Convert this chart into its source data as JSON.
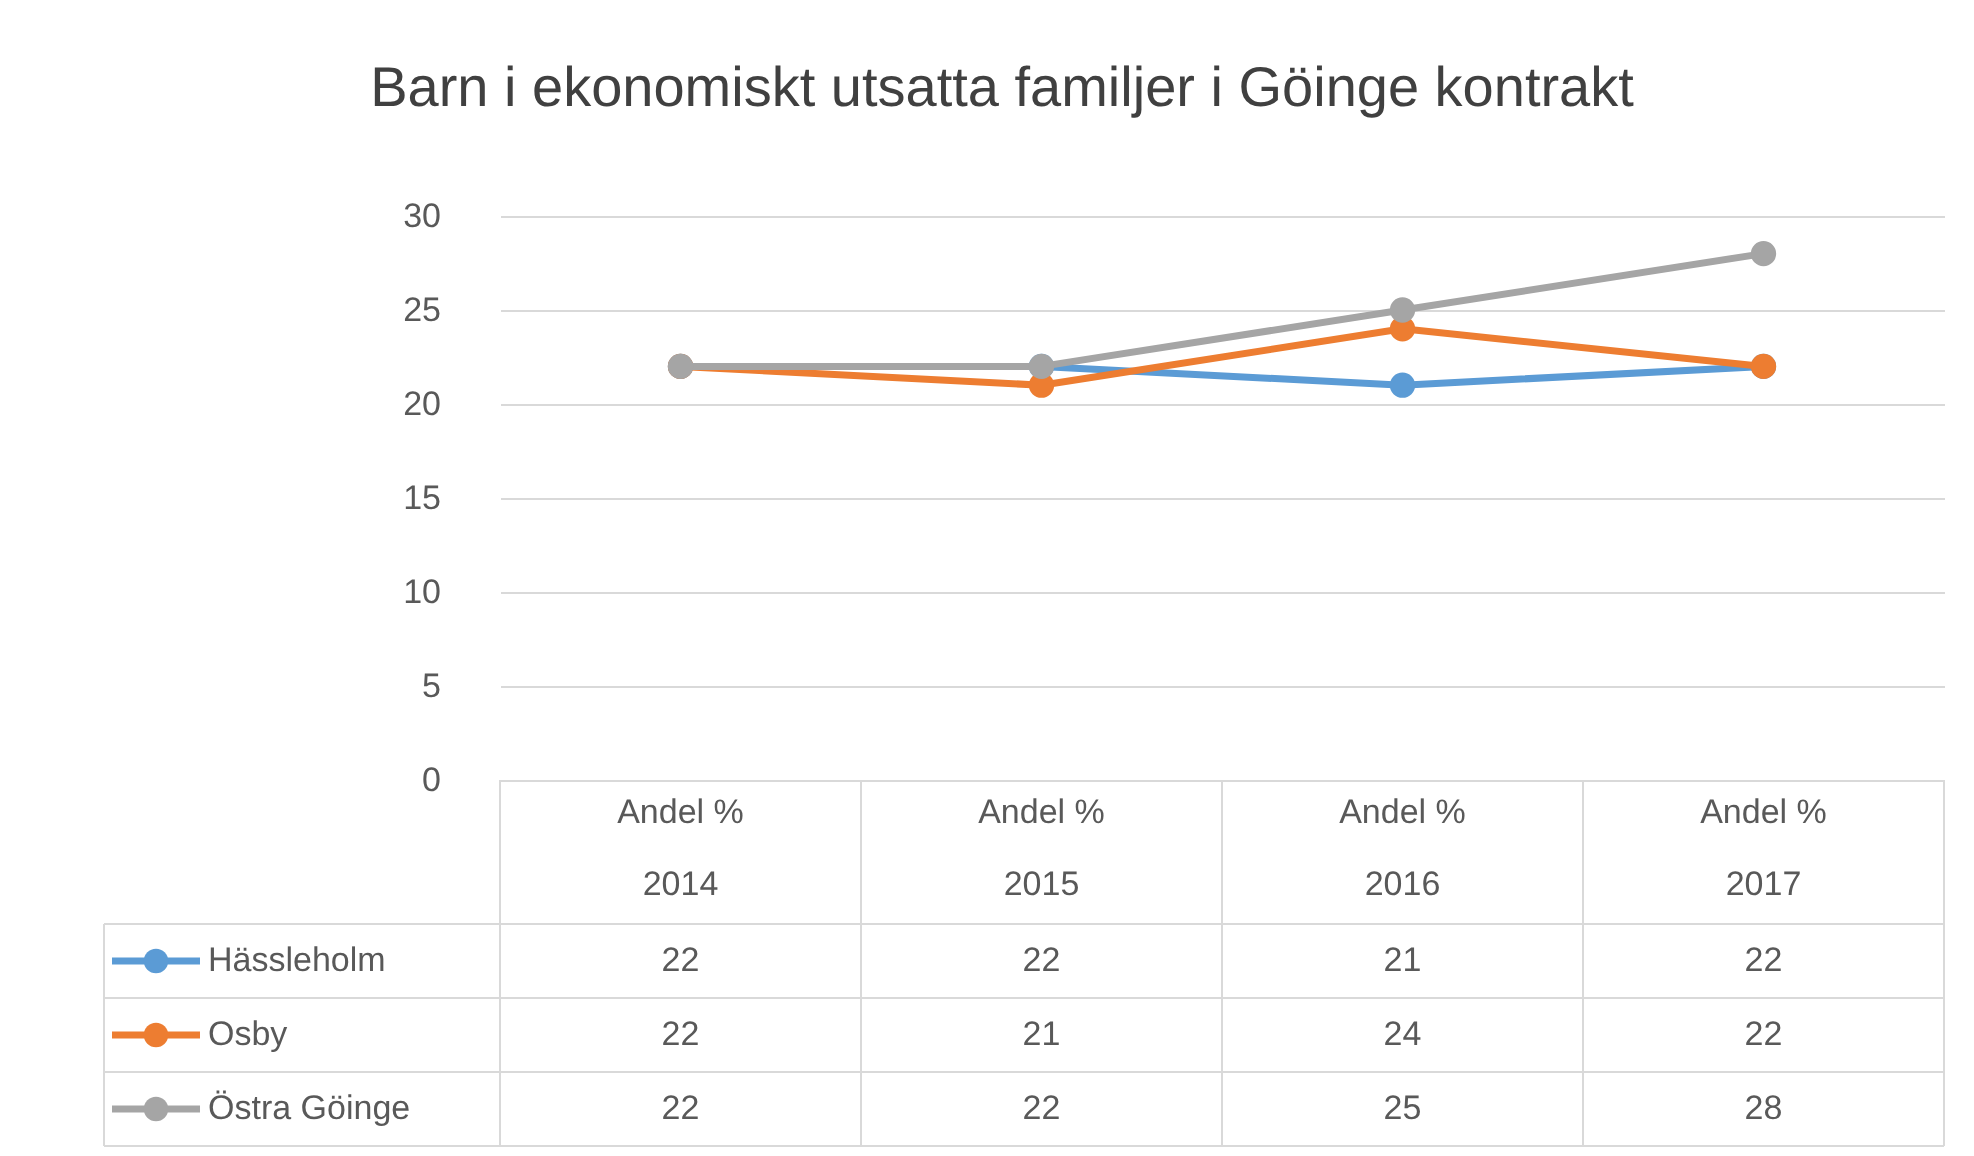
{
  "chart_data": {
    "type": "line",
    "title": "Barn i ekonomiskt utsatta familjer i Göinge kontrakt",
    "categories": [
      "Andel % 2014",
      "Andel % 2015",
      "Andel % 2016",
      "Andel % 2017"
    ],
    "series": [
      {
        "name": "Hässleholm",
        "color": "#5b9bd5",
        "values": [
          22,
          22,
          21,
          22
        ]
      },
      {
        "name": "Osby",
        "color": "#ed7d31",
        "values": [
          22,
          21,
          24,
          22
        ]
      },
      {
        "name": "Östra Göinge",
        "color": "#a5a5a5",
        "values": [
          22,
          22,
          25,
          28
        ]
      }
    ],
    "ylim": [
      0,
      30
    ],
    "yticks": [
      0,
      5,
      10,
      15,
      20,
      25,
      30
    ],
    "grid": "y",
    "marker": "circle",
    "line_style": "solid",
    "data_labels": true,
    "legend": "bottom left"
  }
}
